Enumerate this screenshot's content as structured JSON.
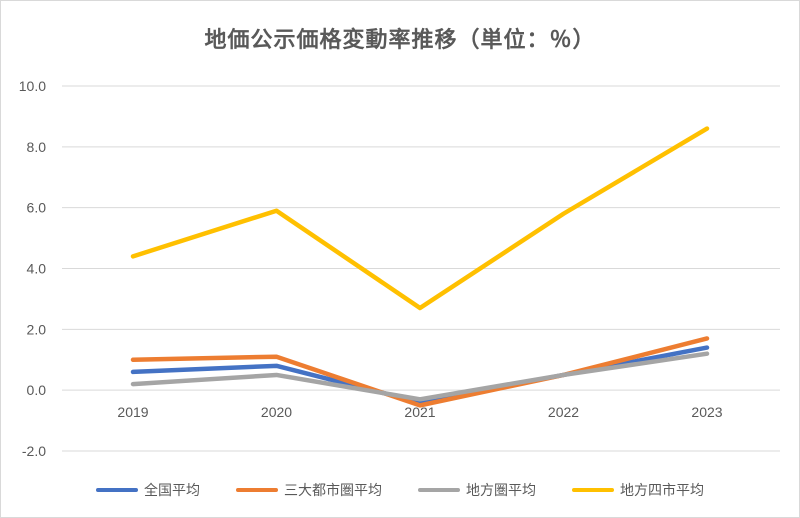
{
  "chart_data": {
    "type": "line",
    "title": "地価公示価格変動率推移（単位：％）",
    "categories": [
      "2019",
      "2020",
      "2021",
      "2022",
      "2023"
    ],
    "ylim": [
      -2.0,
      10.0
    ],
    "yticks": [
      "10.0",
      "8.0",
      "6.0",
      "4.0",
      "2.0",
      "0.0",
      "-2.0"
    ],
    "ytick_values": [
      10,
      8,
      6,
      4,
      2,
      0,
      -2
    ],
    "grid": true,
    "legend_position": "bottom",
    "series": [
      {
        "name": "全国平均",
        "color": "#4472c4",
        "values": [
          0.6,
          0.8,
          -0.4,
          0.5,
          1.4
        ]
      },
      {
        "name": "三大都市圏平均",
        "color": "#ed7d31",
        "values": [
          1.0,
          1.1,
          -0.5,
          0.5,
          1.7
        ]
      },
      {
        "name": "地方圏平均",
        "color": "#a5a5a5",
        "values": [
          0.2,
          0.5,
          -0.3,
          0.5,
          1.2
        ]
      },
      {
        "name": "地方四市平均",
        "color": "#ffc000",
        "values": [
          4.4,
          5.9,
          2.7,
          5.8,
          8.6
        ]
      }
    ]
  }
}
